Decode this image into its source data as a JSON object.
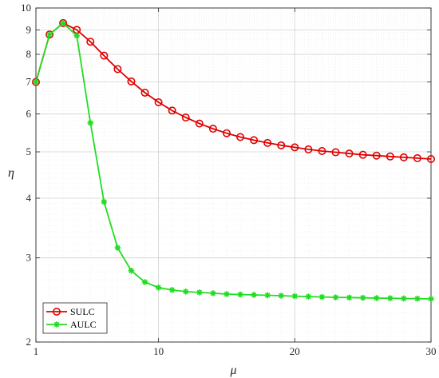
{
  "chart_data": {
    "type": "line",
    "xlabel": "μ",
    "ylabel": "η",
    "xlim": [
      1,
      30
    ],
    "ylim": [
      2,
      10
    ],
    "yscale": "log",
    "xticks": [
      1,
      10,
      20,
      30
    ],
    "yticks": [
      2,
      3,
      4,
      5,
      6,
      7,
      8,
      9,
      10
    ],
    "grid": true,
    "legend_position": "bottom-left",
    "series": [
      {
        "name": "SULC",
        "color": "#e00000",
        "marker": "circle-open",
        "x": [
          1,
          2,
          3,
          4,
          5,
          6,
          7,
          8,
          9,
          10,
          11,
          12,
          13,
          14,
          15,
          16,
          17,
          18,
          19,
          20,
          21,
          22,
          23,
          24,
          25,
          26,
          27,
          28,
          29,
          30
        ],
        "values": [
          7.0,
          8.8,
          9.3,
          9.0,
          8.5,
          7.95,
          7.45,
          7.02,
          6.65,
          6.35,
          6.1,
          5.9,
          5.73,
          5.59,
          5.47,
          5.37,
          5.29,
          5.22,
          5.16,
          5.11,
          5.06,
          5.02,
          4.99,
          4.96,
          4.93,
          4.91,
          4.89,
          4.87,
          4.85,
          4.83
        ]
      },
      {
        "name": "AULC",
        "color": "#22dd22",
        "marker": "asterisk",
        "x": [
          1,
          2,
          3,
          4,
          5,
          6,
          7,
          8,
          9,
          10,
          11,
          12,
          13,
          14,
          15,
          16,
          17,
          18,
          19,
          20,
          21,
          22,
          23,
          24,
          25,
          26,
          27,
          28,
          29,
          30
        ],
        "values": [
          7.0,
          8.8,
          9.3,
          8.75,
          5.75,
          3.93,
          3.15,
          2.82,
          2.67,
          2.6,
          2.57,
          2.55,
          2.54,
          2.53,
          2.52,
          2.515,
          2.51,
          2.505,
          2.5,
          2.495,
          2.49,
          2.485,
          2.48,
          2.478,
          2.475,
          2.472,
          2.47,
          2.467,
          2.465,
          2.462
        ]
      }
    ]
  }
}
